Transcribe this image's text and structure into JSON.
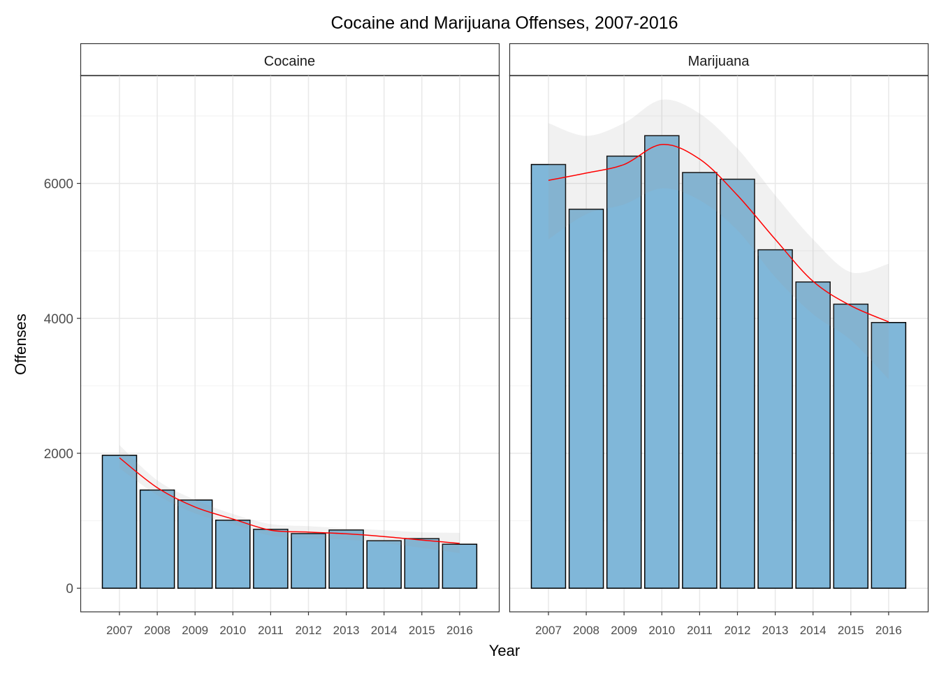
{
  "chart_data": {
    "type": "bar",
    "title": "Cocaine and Marijuana Offenses, 2007-2016",
    "xlabel": "Year",
    "ylabel": "Offenses",
    "ylim": [
      -350,
      7600
    ],
    "yticks": [
      0,
      2000,
      4000,
      6000
    ],
    "ytick_labels": [
      "0",
      "2000",
      "4000",
      "6000"
    ],
    "grid": true,
    "categories": [
      "2007",
      "2008",
      "2009",
      "2010",
      "2011",
      "2012",
      "2013",
      "2014",
      "2015",
      "2016"
    ],
    "colors": {
      "bar_fill": "#80b7d9",
      "bar_edge": "#000000",
      "smooth_line": "#ff0000",
      "ribbon": "#999999"
    },
    "panels": [
      {
        "name": "Cocaine",
        "values": [
          1970,
          1455,
          1307,
          1008,
          873,
          810,
          863,
          704,
          735,
          652
        ],
        "smooth": [
          1933,
          1490,
          1203,
          1026,
          860,
          832,
          807,
          766,
          714,
          665
        ],
        "smooth_upper": [
          2120,
          1600,
          1310,
          1100,
          950,
          920,
          890,
          860,
          830,
          820
        ],
        "smooth_lower": [
          1780,
          1380,
          1110,
          950,
          780,
          740,
          720,
          670,
          600,
          520
        ]
      },
      {
        "name": "Marijuana",
        "values": [
          6280,
          5617,
          6404,
          6707,
          6161,
          6062,
          5016,
          4539,
          4210,
          3938
        ],
        "smooth": [
          6045,
          6153,
          6280,
          6577,
          6360,
          5824,
          5171,
          4549,
          4187,
          3948
        ],
        "smooth_upper": [
          6894,
          6705,
          6894,
          7240,
          7036,
          6518,
          5824,
          5171,
          4684,
          4808
        ],
        "smooth_lower": [
          5171,
          5544,
          5689,
          5927,
          5751,
          5306,
          4611,
          4062,
          3679,
          3098
        ]
      }
    ]
  }
}
